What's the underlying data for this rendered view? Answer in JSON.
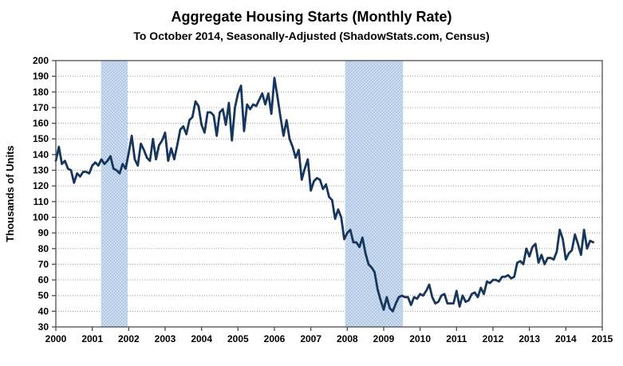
{
  "chart_data": {
    "type": "line",
    "title": "Aggregate Housing Starts (Monthly Rate)",
    "subtitle": "To October 2014, Seasonally-Adjusted (ShadowStats.com, Census)",
    "ylabel": "Thousands of Units",
    "xlabel": "",
    "ylim": [
      30,
      200
    ],
    "y_tick_step": 10,
    "x_ticks": [
      2000,
      2001,
      2002,
      2003,
      2004,
      2005,
      2006,
      2007,
      2008,
      2009,
      2010,
      2011,
      2012,
      2013,
      2014,
      2015
    ],
    "grid": "horizontal-dotted",
    "legend_position": "none",
    "colors": {
      "line": "#17365D",
      "band_light": "#CBDCF0",
      "band_dark": "#B3C9E4",
      "grid": "#999999",
      "axis": "#4D4D4D",
      "text": "#000000"
    },
    "recession_bands": [
      {
        "from": 2001.24,
        "to": 2001.97
      },
      {
        "from": 2007.94,
        "to": 2009.53
      }
    ],
    "series": [
      {
        "name": "Aggregate housing starts, monthly rate (thousands of units)",
        "frequency": "monthly",
        "start": "2000-01",
        "end": "2014-10",
        "values": [
          136,
          145,
          134,
          136,
          131,
          130,
          122,
          128,
          126,
          129,
          129,
          128,
          133,
          135,
          133,
          137,
          134,
          136,
          139,
          131,
          130,
          128,
          134,
          131,
          141,
          152,
          137,
          133,
          147,
          143,
          138,
          136,
          150,
          137,
          146,
          149,
          154,
          136,
          144,
          137,
          146,
          156,
          158,
          153,
          162,
          164,
          174,
          171,
          159,
          154,
          167,
          167,
          165,
          152,
          167,
          169,
          159,
          173,
          149,
          170,
          179,
          184,
          155,
          172,
          169,
          172,
          171,
          175,
          179,
          172,
          179,
          166,
          189,
          177,
          164,
          152,
          162,
          150,
          145,
          138,
          143,
          124,
          131,
          137,
          117,
          123,
          125,
          124,
          118,
          121,
          113,
          111,
          99,
          105,
          100,
          86,
          90,
          92,
          84,
          84,
          81,
          87,
          77,
          70,
          68,
          65,
          54,
          47,
          41,
          49,
          42,
          40,
          45,
          49,
          50,
          49,
          49,
          44,
          49,
          48,
          51,
          50,
          53,
          57,
          49,
          45,
          46,
          50,
          51,
          45,
          45,
          45,
          53,
          43,
          50,
          46,
          47,
          51,
          52,
          49,
          55,
          51,
          59,
          58,
          60,
          60,
          59,
          62,
          62,
          63,
          61,
          62,
          71,
          72,
          70,
          80,
          75,
          81,
          83,
          71,
          76,
          70,
          74,
          74,
          73,
          78,
          92,
          86,
          73,
          77,
          79,
          89,
          83,
          76,
          92,
          80,
          85,
          84
        ]
      }
    ]
  }
}
